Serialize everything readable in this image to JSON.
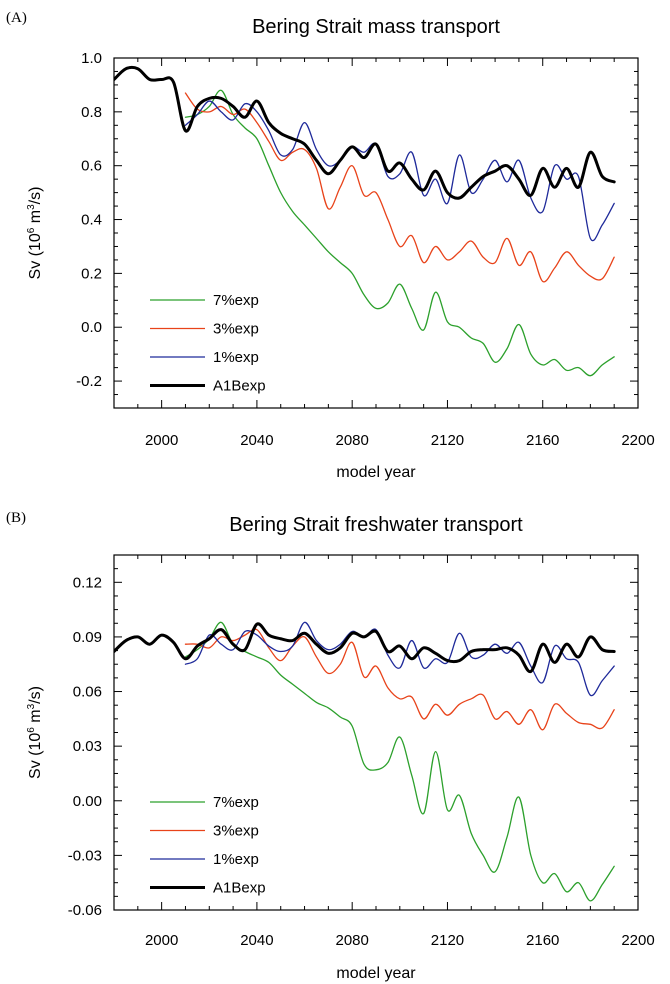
{
  "chart_data": [
    {
      "panel": "(A)",
      "type": "line",
      "title": "Bering Strait mass transport",
      "xlabel": "model year",
      "ylabel_parts": [
        "Sv (10",
        "6",
        " m",
        "3",
        "/s)"
      ],
      "xlim": [
        1980,
        2200
      ],
      "ylim": [
        -0.3,
        1.0
      ],
      "xticks": [
        2000,
        2040,
        2080,
        2120,
        2160,
        2200
      ],
      "yticks": [
        -0.2,
        0.0,
        0.2,
        0.4,
        0.6,
        0.8,
        1.0
      ],
      "ytick_labels": [
        "-0.2",
        "0.0",
        "0.2",
        "0.4",
        "0.6",
        "0.8",
        "1.0"
      ],
      "grid": false,
      "legend_position": "bottom-left",
      "series": [
        {
          "name": "7%exp",
          "color": "#2ca02c",
          "width": 1.3,
          "x": [
            2010,
            2015,
            2020,
            2025,
            2030,
            2035,
            2040,
            2045,
            2050,
            2055,
            2060,
            2065,
            2070,
            2075,
            2080,
            2085,
            2090,
            2095,
            2100,
            2105,
            2110,
            2115,
            2120,
            2125,
            2130,
            2135,
            2140,
            2145,
            2150,
            2155,
            2160,
            2165,
            2170,
            2175,
            2180,
            2185,
            2190
          ],
          "y": [
            0.78,
            0.79,
            0.82,
            0.88,
            0.79,
            0.74,
            0.7,
            0.6,
            0.5,
            0.43,
            0.38,
            0.33,
            0.28,
            0.24,
            0.2,
            0.12,
            0.07,
            0.09,
            0.16,
            0.07,
            -0.01,
            0.13,
            0.02,
            0.0,
            -0.04,
            -0.06,
            -0.13,
            -0.08,
            0.01,
            -0.1,
            -0.14,
            -0.12,
            -0.16,
            -0.15,
            -0.18,
            -0.14,
            -0.11
          ]
        },
        {
          "name": "3%exp",
          "color": "#e8431a",
          "width": 1.3,
          "x": [
            2010,
            2015,
            2020,
            2025,
            2030,
            2035,
            2040,
            2045,
            2050,
            2055,
            2060,
            2065,
            2070,
            2075,
            2080,
            2085,
            2090,
            2095,
            2100,
            2105,
            2110,
            2115,
            2120,
            2125,
            2130,
            2135,
            2140,
            2145,
            2150,
            2155,
            2160,
            2165,
            2170,
            2175,
            2180,
            2185,
            2190
          ],
          "y": [
            0.87,
            0.81,
            0.8,
            0.82,
            0.79,
            0.81,
            0.76,
            0.69,
            0.62,
            0.65,
            0.66,
            0.59,
            0.44,
            0.52,
            0.6,
            0.49,
            0.5,
            0.4,
            0.3,
            0.34,
            0.24,
            0.3,
            0.25,
            0.28,
            0.32,
            0.26,
            0.24,
            0.33,
            0.23,
            0.28,
            0.17,
            0.22,
            0.28,
            0.23,
            0.19,
            0.18,
            0.26
          ]
        },
        {
          "name": "1%exp",
          "color": "#1f2a9a",
          "width": 1.3,
          "x": [
            2010,
            2015,
            2020,
            2025,
            2030,
            2035,
            2040,
            2045,
            2050,
            2055,
            2060,
            2065,
            2070,
            2075,
            2080,
            2085,
            2090,
            2095,
            2100,
            2105,
            2110,
            2115,
            2120,
            2125,
            2130,
            2135,
            2140,
            2145,
            2150,
            2155,
            2160,
            2165,
            2170,
            2175,
            2180,
            2185,
            2190
          ],
          "y": [
            0.75,
            0.79,
            0.84,
            0.8,
            0.77,
            0.83,
            0.8,
            0.73,
            0.64,
            0.66,
            0.76,
            0.66,
            0.6,
            0.62,
            0.67,
            0.65,
            0.68,
            0.56,
            0.57,
            0.65,
            0.49,
            0.55,
            0.46,
            0.64,
            0.5,
            0.55,
            0.62,
            0.54,
            0.62,
            0.48,
            0.43,
            0.6,
            0.55,
            0.56,
            0.33,
            0.38,
            0.46
          ]
        },
        {
          "name": "A1Bexp",
          "color": "#000000",
          "width": 3.0,
          "x": [
            1980,
            1985,
            1990,
            1995,
            2000,
            2005,
            2010,
            2015,
            2020,
            2025,
            2030,
            2035,
            2040,
            2045,
            2050,
            2055,
            2060,
            2065,
            2070,
            2075,
            2080,
            2085,
            2090,
            2095,
            2100,
            2105,
            2110,
            2115,
            2120,
            2125,
            2130,
            2135,
            2140,
            2145,
            2150,
            2155,
            2160,
            2165,
            2170,
            2175,
            2180,
            2185,
            2190
          ],
          "y": [
            0.92,
            0.96,
            0.96,
            0.92,
            0.92,
            0.91,
            0.73,
            0.82,
            0.85,
            0.85,
            0.82,
            0.78,
            0.84,
            0.76,
            0.72,
            0.7,
            0.68,
            0.62,
            0.57,
            0.62,
            0.67,
            0.63,
            0.68,
            0.58,
            0.61,
            0.55,
            0.51,
            0.58,
            0.5,
            0.48,
            0.52,
            0.56,
            0.58,
            0.6,
            0.55,
            0.49,
            0.59,
            0.52,
            0.59,
            0.52,
            0.65,
            0.56,
            0.54
          ]
        }
      ]
    },
    {
      "panel": "(B)",
      "type": "line",
      "title": "Bering Strait freshwater transport",
      "xlabel": "model year",
      "ylabel_parts": [
        "Sv (10",
        "6",
        " m",
        "3",
        "/s)"
      ],
      "xlim": [
        1980,
        2200
      ],
      "ylim": [
        -0.06,
        0.135
      ],
      "xticks": [
        2000,
        2040,
        2080,
        2120,
        2160,
        2200
      ],
      "yticks": [
        -0.06,
        -0.03,
        0.0,
        0.03,
        0.06,
        0.09,
        0.12
      ],
      "ytick_labels": [
        "-0.06",
        "-0.03",
        "0.00",
        "0.03",
        "0.06",
        "0.09",
        "0.12"
      ],
      "grid": false,
      "legend_position": "bottom-left",
      "series": [
        {
          "name": "7%exp",
          "color": "#2ca02c",
          "width": 1.3,
          "x": [
            2010,
            2015,
            2020,
            2025,
            2030,
            2035,
            2040,
            2045,
            2050,
            2055,
            2060,
            2065,
            2070,
            2075,
            2080,
            2085,
            2090,
            2095,
            2100,
            2105,
            2110,
            2115,
            2120,
            2125,
            2130,
            2135,
            2140,
            2145,
            2150,
            2155,
            2160,
            2165,
            2170,
            2175,
            2180,
            2185,
            2190
          ],
          "y": [
            0.079,
            0.083,
            0.089,
            0.098,
            0.086,
            0.082,
            0.079,
            0.076,
            0.069,
            0.064,
            0.059,
            0.054,
            0.051,
            0.046,
            0.041,
            0.02,
            0.017,
            0.021,
            0.035,
            0.014,
            -0.007,
            0.027,
            -0.005,
            0.003,
            -0.018,
            -0.03,
            -0.039,
            -0.02,
            0.002,
            -0.03,
            -0.045,
            -0.04,
            -0.05,
            -0.045,
            -0.055,
            -0.046,
            -0.036
          ]
        },
        {
          "name": "3%exp",
          "color": "#e8431a",
          "width": 1.3,
          "x": [
            2010,
            2015,
            2020,
            2025,
            2030,
            2035,
            2040,
            2045,
            2050,
            2055,
            2060,
            2065,
            2070,
            2075,
            2080,
            2085,
            2090,
            2095,
            2100,
            2105,
            2110,
            2115,
            2120,
            2125,
            2130,
            2135,
            2140,
            2145,
            2150,
            2155,
            2160,
            2165,
            2170,
            2175,
            2180,
            2185,
            2190
          ],
          "y": [
            0.086,
            0.086,
            0.084,
            0.09,
            0.088,
            0.091,
            0.094,
            0.084,
            0.077,
            0.085,
            0.09,
            0.079,
            0.07,
            0.075,
            0.087,
            0.068,
            0.074,
            0.062,
            0.056,
            0.057,
            0.045,
            0.053,
            0.047,
            0.053,
            0.056,
            0.058,
            0.045,
            0.049,
            0.042,
            0.05,
            0.039,
            0.053,
            0.048,
            0.043,
            0.042,
            0.04,
            0.05
          ]
        },
        {
          "name": "1%exp",
          "color": "#1f2a9a",
          "width": 1.3,
          "x": [
            2010,
            2015,
            2020,
            2025,
            2030,
            2035,
            2040,
            2045,
            2050,
            2055,
            2060,
            2065,
            2070,
            2075,
            2080,
            2085,
            2090,
            2095,
            2100,
            2105,
            2110,
            2115,
            2120,
            2125,
            2130,
            2135,
            2140,
            2145,
            2150,
            2155,
            2160,
            2165,
            2170,
            2175,
            2180,
            2185,
            2190
          ],
          "y": [
            0.075,
            0.078,
            0.091,
            0.086,
            0.083,
            0.093,
            0.091,
            0.085,
            0.082,
            0.085,
            0.098,
            0.088,
            0.083,
            0.086,
            0.093,
            0.09,
            0.094,
            0.08,
            0.073,
            0.088,
            0.073,
            0.078,
            0.076,
            0.092,
            0.079,
            0.08,
            0.086,
            0.081,
            0.087,
            0.074,
            0.065,
            0.085,
            0.078,
            0.076,
            0.058,
            0.066,
            0.074
          ]
        },
        {
          "name": "A1Bexp",
          "color": "#000000",
          "width": 3.0,
          "x": [
            1980,
            1985,
            1990,
            1995,
            2000,
            2005,
            2010,
            2015,
            2020,
            2025,
            2030,
            2035,
            2040,
            2045,
            2050,
            2055,
            2060,
            2065,
            2070,
            2075,
            2080,
            2085,
            2090,
            2095,
            2100,
            2105,
            2110,
            2115,
            2120,
            2125,
            2130,
            2135,
            2140,
            2145,
            2150,
            2155,
            2160,
            2165,
            2170,
            2175,
            2180,
            2185,
            2190
          ],
          "y": [
            0.082,
            0.088,
            0.09,
            0.086,
            0.091,
            0.087,
            0.078,
            0.085,
            0.089,
            0.094,
            0.086,
            0.083,
            0.097,
            0.091,
            0.089,
            0.088,
            0.092,
            0.086,
            0.081,
            0.084,
            0.092,
            0.09,
            0.093,
            0.082,
            0.085,
            0.078,
            0.084,
            0.081,
            0.077,
            0.077,
            0.082,
            0.083,
            0.083,
            0.084,
            0.08,
            0.071,
            0.086,
            0.076,
            0.086,
            0.079,
            0.09,
            0.083,
            0.082
          ]
        }
      ]
    }
  ]
}
